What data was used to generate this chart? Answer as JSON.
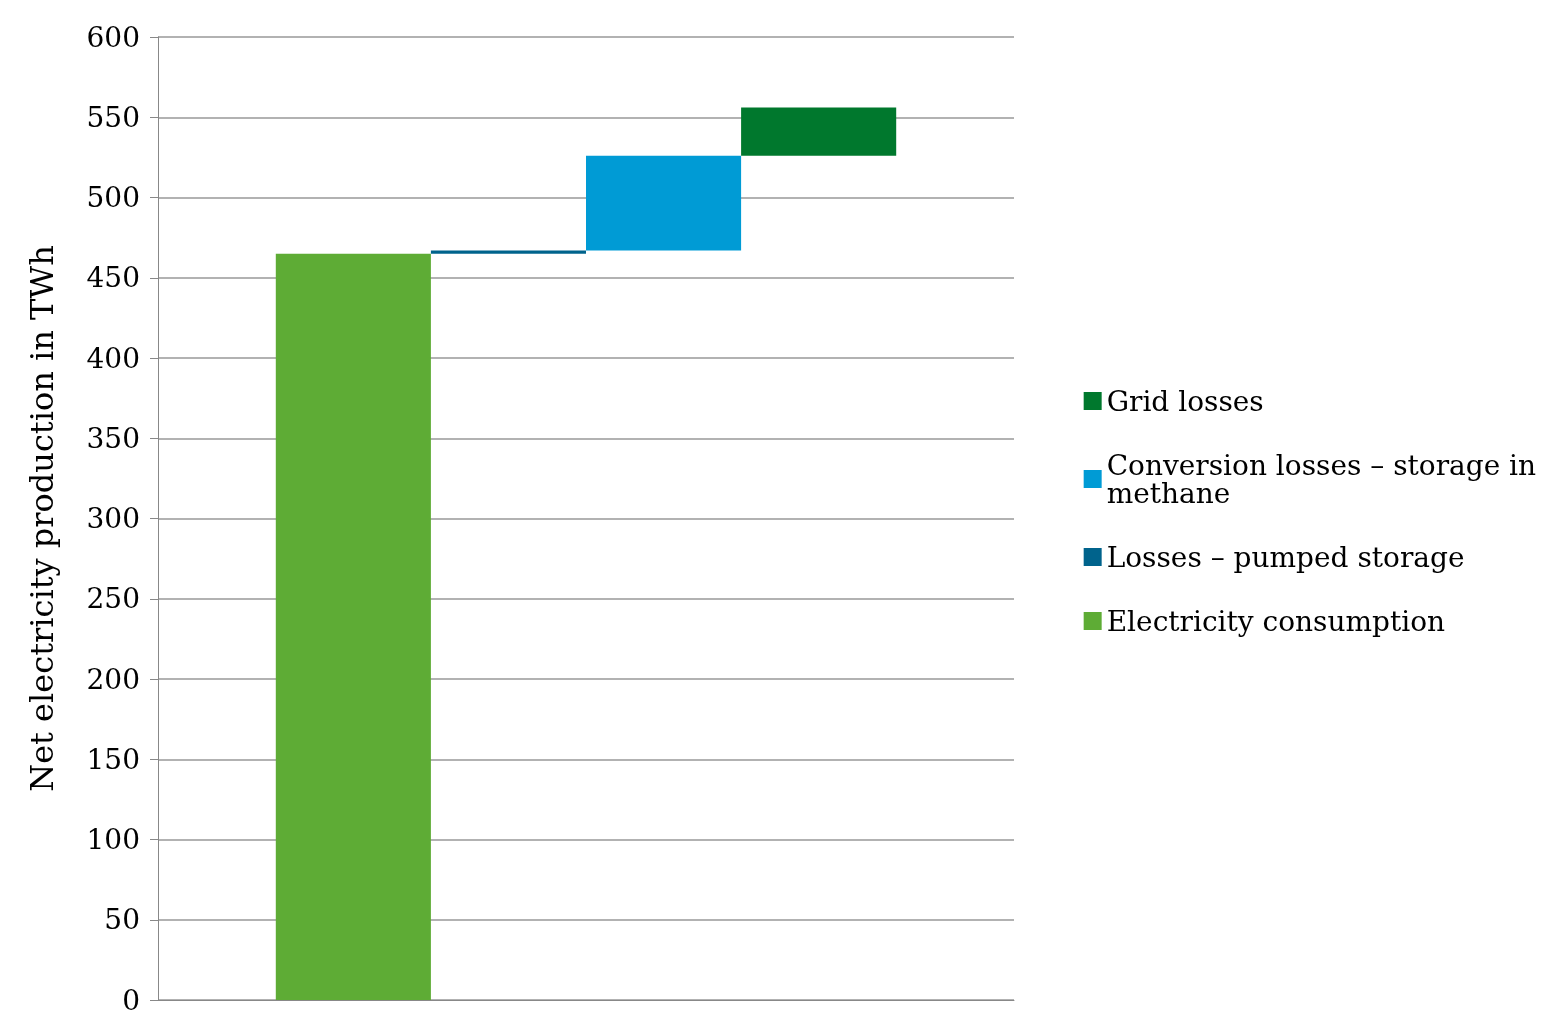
{
  "chart_data": {
    "type": "bar",
    "ylabel": "Net electricity production in TWh",
    "categories": [
      null,
      null,
      null,
      null
    ],
    "series": [
      {
        "name": "Electricity consumption",
        "color": "#5eac35",
        "values": [
          465,
          null,
          null,
          null
        ],
        "base": [
          0,
          null,
          null,
          null
        ]
      },
      {
        "name": "Losses – pumped storage",
        "color": "#00638c",
        "values": [
          null,
          2,
          null,
          null
        ],
        "base": [
          null,
          465,
          null,
          null
        ]
      },
      {
        "name": "Conversion losses – storage in methane",
        "color": "#009bd5",
        "values": [
          null,
          null,
          59,
          null
        ],
        "base": [
          null,
          null,
          467,
          null
        ]
      },
      {
        "name": "Grid losses",
        "color": "#00782d",
        "values": [
          null,
          null,
          null,
          30
        ],
        "base": [
          null,
          null,
          null,
          526
        ]
      }
    ],
    "ylim": [
      0,
      600
    ],
    "yticks": [
      0,
      50,
      100,
      150,
      200,
      250,
      300,
      350,
      400,
      450,
      500,
      550,
      600
    ],
    "grid": "y",
    "legend": "right"
  }
}
